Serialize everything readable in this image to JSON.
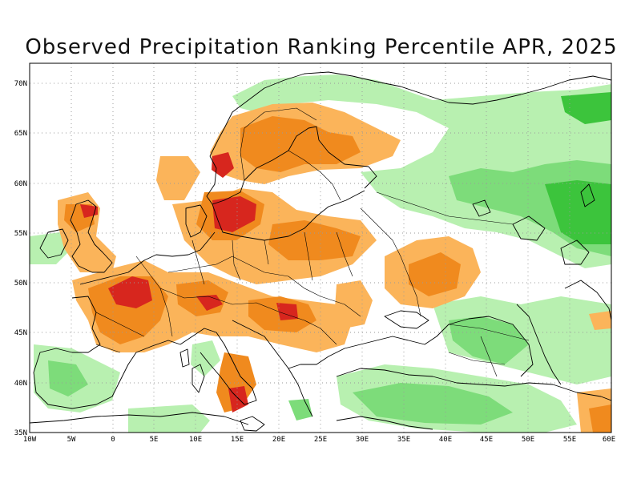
{
  "title": "Observed Precipitation Ranking Percentile APR, 2025",
  "axes": {
    "lon_labels": [
      "10W",
      "5W",
      "0",
      "5E",
      "10E",
      "15E",
      "20E",
      "25E",
      "30E",
      "35E",
      "40E",
      "45E",
      "50E",
      "55E",
      "60E"
    ],
    "lat_labels": [
      "70N",
      "65N",
      "60N",
      "55N",
      "50N",
      "45N",
      "40N",
      "35N"
    ]
  },
  "colors": {
    "dark_red": "#d7261e",
    "orange_dark": "#f08a1e",
    "orange_light": "#fbb45a",
    "green_light": "#b8f0b0",
    "green_mid": "#7ddc7a",
    "green_dark": "#3cc43c",
    "coast": "#000000",
    "grid": "#9a9a9a"
  }
}
